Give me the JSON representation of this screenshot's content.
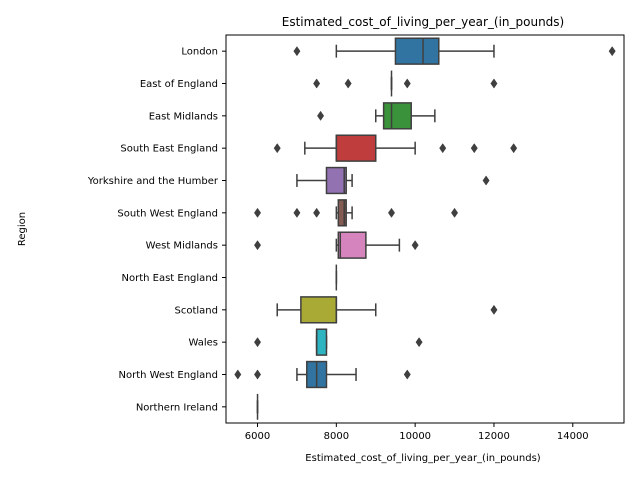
{
  "chart_data": {
    "type": "boxplot",
    "orientation": "horizontal",
    "title": "Estimated_cost_of_living_per_year_(in_pounds)",
    "xlabel": "Estimated_cost_of_living_per_year_(in_pounds)",
    "ylabel": "Region",
    "xlim": [
      5200,
      15300
    ],
    "xticks": [
      6000,
      8000,
      10000,
      12000,
      14000
    ],
    "xtick_labels": [
      "6000",
      "8000",
      "10000",
      "12000",
      "14000"
    ],
    "grid": false,
    "legend": "none",
    "categories": [
      {
        "name": "London",
        "color": "#3274a1",
        "whislo": 8000,
        "q1": 9500,
        "med": 10200,
        "q3": 10600,
        "whishi": 12000,
        "fliers": [
          7000,
          15000
        ]
      },
      {
        "name": "East of England",
        "color": "#e1812c",
        "whislo": 9400,
        "q1": 9400,
        "med": 9400,
        "q3": 9400,
        "whishi": 9400,
        "fliers": [
          7500,
          8300,
          9800,
          12000
        ]
      },
      {
        "name": "East Midlands",
        "color": "#3a923a",
        "whislo": 9000,
        "q1": 9200,
        "med": 9400,
        "q3": 9900,
        "whishi": 10500,
        "fliers": [
          7600
        ]
      },
      {
        "name": "South East England",
        "color": "#c03d3e",
        "whislo": 7200,
        "q1": 8000,
        "med": 8000,
        "q3": 9000,
        "whishi": 10000,
        "fliers": [
          6500,
          10700,
          11500,
          12500
        ]
      },
      {
        "name": "Yorkshire and the Humber",
        "color": "#9372b2",
        "whislo": 7000,
        "q1": 7750,
        "med": 8200,
        "q3": 8250,
        "whishi": 8400,
        "fliers": [
          11800
        ]
      },
      {
        "name": "South West England",
        "color": "#845b53",
        "whislo": 8000,
        "q1": 8050,
        "med": 8200,
        "q3": 8250,
        "whishi": 8400,
        "fliers": [
          6000,
          7000,
          7500,
          9400,
          11000
        ]
      },
      {
        "name": "West Midlands",
        "color": "#d684bd",
        "whislo": 8000,
        "q1": 8050,
        "med": 8100,
        "q3": 8750,
        "whishi": 9600,
        "fliers": [
          6000,
          10000
        ]
      },
      {
        "name": "North East England",
        "color": "#7f7f7f",
        "whislo": 8000,
        "q1": 8000,
        "med": 8000,
        "q3": 8000,
        "whishi": 8000,
        "fliers": []
      },
      {
        "name": "Scotland",
        "color": "#a9aa35",
        "whislo": 6500,
        "q1": 7100,
        "med": 8000,
        "q3": 8000,
        "whishi": 9000,
        "fliers": [
          12000
        ]
      },
      {
        "name": "Wales",
        "color": "#2eb3c1",
        "whislo": 7500,
        "q1": 7500,
        "med": 7500,
        "q3": 7750,
        "whishi": 7750,
        "fliers": [
          6000,
          10100
        ]
      },
      {
        "name": "North West England",
        "color": "#3274a1",
        "whislo": 7000,
        "q1": 7250,
        "med": 7500,
        "q3": 7750,
        "whishi": 8500,
        "fliers": [
          5500,
          6000,
          9800
        ]
      },
      {
        "name": "Northern Ireland",
        "color": "#e1812c",
        "whislo": 6000,
        "q1": 6000,
        "med": 6000,
        "q3": 6000,
        "whishi": 6000,
        "fliers": []
      }
    ]
  }
}
